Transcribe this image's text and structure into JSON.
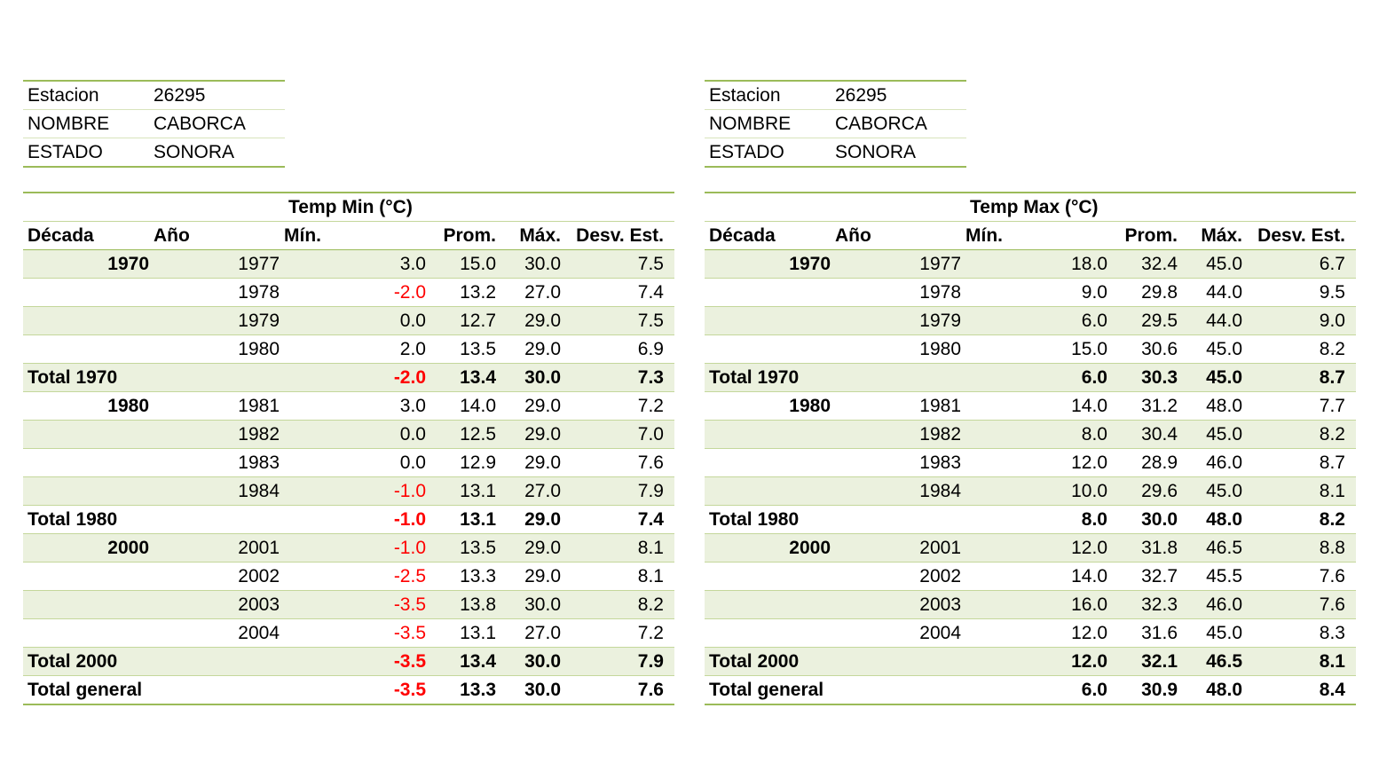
{
  "station_info": [
    {
      "label": "Estacion",
      "value": "26295"
    },
    {
      "label": "NOMBRE",
      "value": "CABORCA"
    },
    {
      "label": "ESTADO",
      "value": "SONORA"
    }
  ],
  "tables": [
    {
      "title": "Temp Min (°C)",
      "headers": {
        "decade": "Década",
        "year": "Año",
        "min": "Mín.",
        "avg": "Prom.",
        "max": "Máx.",
        "sd": "Desv. Est."
      },
      "rows": [
        {
          "type": "year",
          "decade": "1970",
          "year": "1977",
          "min": "3.0",
          "avg": "15.0",
          "max": "30.0",
          "sd": "7.5"
        },
        {
          "type": "year",
          "decade": "",
          "year": "1978",
          "min": "-2.0",
          "avg": "13.2",
          "max": "27.0",
          "sd": "7.4"
        },
        {
          "type": "year",
          "decade": "",
          "year": "1979",
          "min": "0.0",
          "avg": "12.7",
          "max": "29.0",
          "sd": "7.5"
        },
        {
          "type": "year",
          "decade": "",
          "year": "1980",
          "min": "2.0",
          "avg": "13.5",
          "max": "29.0",
          "sd": "6.9"
        },
        {
          "type": "total",
          "decade": "Total 1970",
          "year": "",
          "min": "-2.0",
          "avg": "13.4",
          "max": "30.0",
          "sd": "7.3"
        },
        {
          "type": "year",
          "decade": "1980",
          "year": "1981",
          "min": "3.0",
          "avg": "14.0",
          "max": "29.0",
          "sd": "7.2"
        },
        {
          "type": "year",
          "decade": "",
          "year": "1982",
          "min": "0.0",
          "avg": "12.5",
          "max": "29.0",
          "sd": "7.0"
        },
        {
          "type": "year",
          "decade": "",
          "year": "1983",
          "min": "0.0",
          "avg": "12.9",
          "max": "29.0",
          "sd": "7.6"
        },
        {
          "type": "year",
          "decade": "",
          "year": "1984",
          "min": "-1.0",
          "avg": "13.1",
          "max": "27.0",
          "sd": "7.9"
        },
        {
          "type": "total",
          "decade": "Total 1980",
          "year": "",
          "min": "-1.0",
          "avg": "13.1",
          "max": "29.0",
          "sd": "7.4"
        },
        {
          "type": "year",
          "decade": "2000",
          "year": "2001",
          "min": "-1.0",
          "avg": "13.5",
          "max": "29.0",
          "sd": "8.1"
        },
        {
          "type": "year",
          "decade": "",
          "year": "2002",
          "min": "-2.5",
          "avg": "13.3",
          "max": "29.0",
          "sd": "8.1"
        },
        {
          "type": "year",
          "decade": "",
          "year": "2003",
          "min": "-3.5",
          "avg": "13.8",
          "max": "30.0",
          "sd": "8.2"
        },
        {
          "type": "year",
          "decade": "",
          "year": "2004",
          "min": "-3.5",
          "avg": "13.1",
          "max": "27.0",
          "sd": "7.2"
        },
        {
          "type": "total",
          "decade": "Total 2000",
          "year": "",
          "min": "-3.5",
          "avg": "13.4",
          "max": "30.0",
          "sd": "7.9"
        },
        {
          "type": "grand",
          "decade": "Total general",
          "year": "",
          "min": "-3.5",
          "avg": "13.3",
          "max": "30.0",
          "sd": "7.6"
        }
      ]
    },
    {
      "title": "Temp Max (°C)",
      "headers": {
        "decade": "Década",
        "year": "Año",
        "min": "Mín.",
        "avg": "Prom.",
        "max": "Máx.",
        "sd": "Desv. Est."
      },
      "rows": [
        {
          "type": "year",
          "decade": "1970",
          "year": "1977",
          "min": "18.0",
          "avg": "32.4",
          "max": "45.0",
          "sd": "6.7"
        },
        {
          "type": "year",
          "decade": "",
          "year": "1978",
          "min": "9.0",
          "avg": "29.8",
          "max": "44.0",
          "sd": "9.5"
        },
        {
          "type": "year",
          "decade": "",
          "year": "1979",
          "min": "6.0",
          "avg": "29.5",
          "max": "44.0",
          "sd": "9.0"
        },
        {
          "type": "year",
          "decade": "",
          "year": "1980",
          "min": "15.0",
          "avg": "30.6",
          "max": "45.0",
          "sd": "8.2"
        },
        {
          "type": "total",
          "decade": "Total 1970",
          "year": "",
          "min": "6.0",
          "avg": "30.3",
          "max": "45.0",
          "sd": "8.7"
        },
        {
          "type": "year",
          "decade": "1980",
          "year": "1981",
          "min": "14.0",
          "avg": "31.2",
          "max": "48.0",
          "sd": "7.7"
        },
        {
          "type": "year",
          "decade": "",
          "year": "1982",
          "min": "8.0",
          "avg": "30.4",
          "max": "45.0",
          "sd": "8.2"
        },
        {
          "type": "year",
          "decade": "",
          "year": "1983",
          "min": "12.0",
          "avg": "28.9",
          "max": "46.0",
          "sd": "8.7"
        },
        {
          "type": "year",
          "decade": "",
          "year": "1984",
          "min": "10.0",
          "avg": "29.6",
          "max": "45.0",
          "sd": "8.1"
        },
        {
          "type": "total",
          "decade": "Total 1980",
          "year": "",
          "min": "8.0",
          "avg": "30.0",
          "max": "48.0",
          "sd": "8.2"
        },
        {
          "type": "year",
          "decade": "2000",
          "year": "2001",
          "min": "12.0",
          "avg": "31.8",
          "max": "46.5",
          "sd": "8.8"
        },
        {
          "type": "year",
          "decade": "",
          "year": "2002",
          "min": "14.0",
          "avg": "32.7",
          "max": "45.5",
          "sd": "7.6"
        },
        {
          "type": "year",
          "decade": "",
          "year": "2003",
          "min": "16.0",
          "avg": "32.3",
          "max": "46.0",
          "sd": "7.6"
        },
        {
          "type": "year",
          "decade": "",
          "year": "2004",
          "min": "12.0",
          "avg": "31.6",
          "max": "45.0",
          "sd": "8.3"
        },
        {
          "type": "total",
          "decade": "Total 2000",
          "year": "",
          "min": "12.0",
          "avg": "32.1",
          "max": "46.5",
          "sd": "8.1"
        },
        {
          "type": "grand",
          "decade": "Total general",
          "year": "",
          "min": "6.0",
          "avg": "30.9",
          "max": "48.0",
          "sd": "8.4"
        }
      ]
    }
  ],
  "colors": {
    "accent_border": "#9bbb59",
    "band_fill": "#ebf1de",
    "negative": "#ff0000"
  }
}
